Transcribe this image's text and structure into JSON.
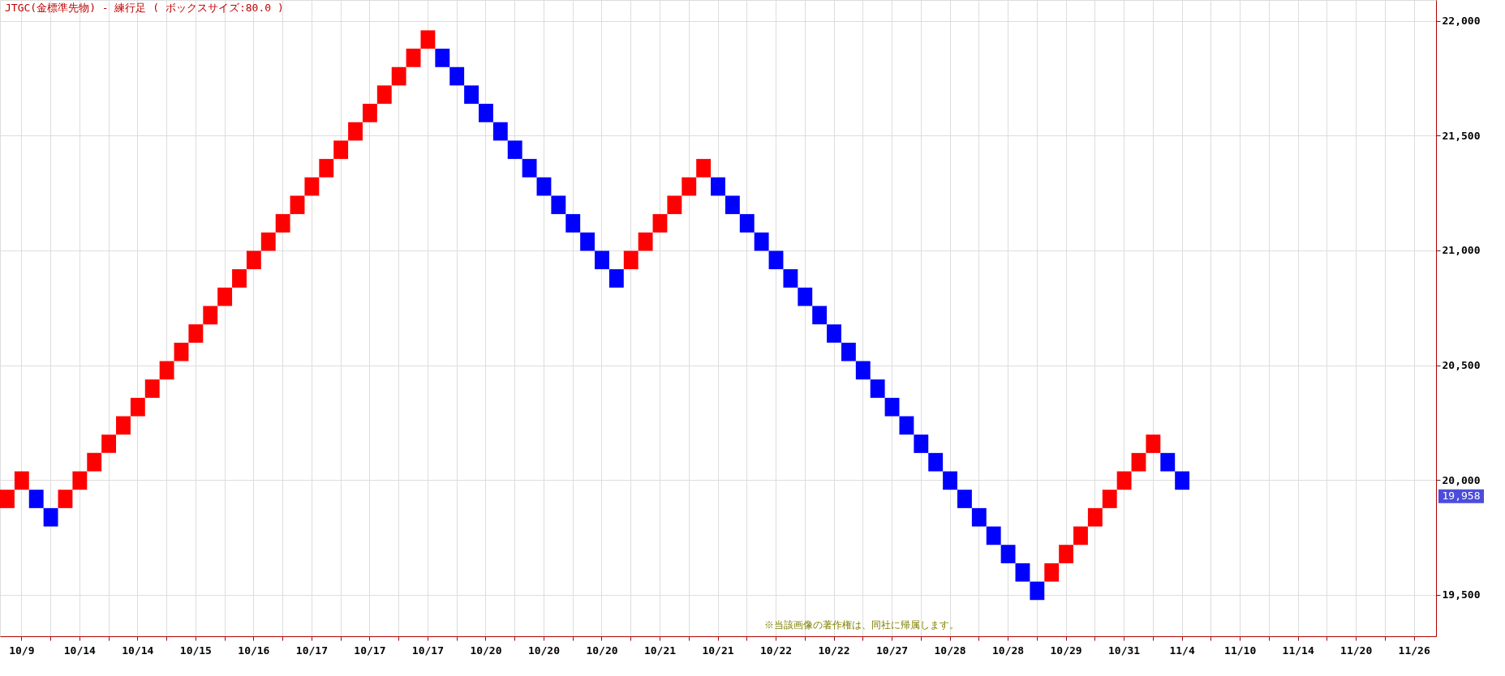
{
  "chart_data": {
    "type": "bar",
    "title": "JTGC(金標準先物) - 練行足 ( ボックスサイズ:80.0 )",
    "categories": [
      null,
      "10/9",
      null,
      null,
      null,
      "10/14",
      null,
      null,
      null,
      "10/14",
      null,
      null,
      null,
      "10/15",
      null,
      null,
      null,
      "10/16",
      null,
      null,
      null,
      "10/17",
      null,
      null,
      null,
      "10/17",
      null,
      null,
      null,
      "10/17",
      null,
      null,
      null,
      "10/20",
      null,
      null,
      null,
      "10/20",
      null,
      null,
      null,
      "10/20",
      null,
      null,
      null,
      "10/21",
      null,
      null,
      null,
      "10/21",
      null,
      null,
      null,
      "10/22",
      null,
      null,
      null,
      "10/22",
      null,
      null,
      null,
      "10/27",
      null,
      null,
      null,
      "10/28",
      null,
      null,
      null,
      "10/28",
      null,
      null,
      null,
      "10/29",
      null,
      null,
      null,
      "10/31",
      null,
      null,
      null,
      "11/4",
      null,
      null,
      null,
      "11/10",
      null,
      null,
      null,
      "11/14",
      null,
      null,
      null,
      "11/20",
      null,
      null,
      null,
      "11/26",
      null
    ],
    "base": [
      19878,
      19958,
      19958,
      19878,
      19878,
      19958,
      20038,
      20118,
      20198,
      20278,
      20358,
      20438,
      20518,
      20598,
      20678,
      20758,
      20838,
      20918,
      20998,
      21078,
      21158,
      21238,
      21318,
      21398,
      21478,
      21558,
      21638,
      21718,
      21798,
      21878,
      21878,
      21798,
      21718,
      21638,
      21558,
      21478,
      21398,
      21318,
      21238,
      21158,
      21078,
      20998,
      20918,
      20918,
      20998,
      21078,
      21158,
      21238,
      21318,
      21318,
      21238,
      21158,
      21078,
      20998,
      20918,
      20838,
      20758,
      20678,
      20598,
      20518,
      20438,
      20358,
      20278,
      20198,
      20118,
      20038,
      19958,
      19878,
      19798,
      19718,
      19638,
      19558,
      19558,
      19638,
      19718,
      19798,
      19878,
      19958,
      20038,
      20118,
      20118,
      20038,
      null,
      null,
      null,
      null,
      null,
      null,
      null,
      null,
      null,
      null,
      null,
      null,
      null,
      null,
      null,
      null,
      null
    ],
    "values": [
      80,
      80,
      -80,
      -80,
      80,
      80,
      80,
      80,
      80,
      80,
      80,
      80,
      80,
      80,
      80,
      80,
      80,
      80,
      80,
      80,
      80,
      80,
      80,
      80,
      80,
      80,
      80,
      80,
      80,
      80,
      -80,
      -80,
      -80,
      -80,
      -80,
      -80,
      -80,
      -80,
      -80,
      -80,
      -80,
      -80,
      -80,
      80,
      80,
      80,
      80,
      80,
      80,
      -80,
      -80,
      -80,
      -80,
      -80,
      -80,
      -80,
      -80,
      -80,
      -80,
      -80,
      -80,
      -80,
      -80,
      -80,
      -80,
      -80,
      -80,
      -80,
      -80,
      -80,
      -80,
      -80,
      80,
      80,
      80,
      80,
      80,
      80,
      80,
      80,
      -80,
      -80,
      null,
      null,
      null,
      null,
      null,
      null,
      null,
      null,
      null,
      null,
      null,
      null,
      null,
      null,
      null,
      null,
      null
    ],
    "colors": [
      "#ff0000",
      "#ff0000",
      "#0000ff",
      "#0000ff",
      "#ff0000",
      "#ff0000",
      "#ff0000",
      "#ff0000",
      "#ff0000",
      "#ff0000",
      "#ff0000",
      "#ff0000",
      "#ff0000",
      "#ff0000",
      "#ff0000",
      "#ff0000",
      "#ff0000",
      "#ff0000",
      "#ff0000",
      "#ff0000",
      "#ff0000",
      "#ff0000",
      "#ff0000",
      "#ff0000",
      "#ff0000",
      "#ff0000",
      "#ff0000",
      "#ff0000",
      "#ff0000",
      "#ff0000",
      "#0000ff",
      "#0000ff",
      "#0000ff",
      "#0000ff",
      "#0000ff",
      "#0000ff",
      "#0000ff",
      "#0000ff",
      "#0000ff",
      "#0000ff",
      "#0000ff",
      "#0000ff",
      "#0000ff",
      "#ff0000",
      "#ff0000",
      "#ff0000",
      "#ff0000",
      "#ff0000",
      "#ff0000",
      "#0000ff",
      "#0000ff",
      "#0000ff",
      "#0000ff",
      "#0000ff",
      "#0000ff",
      "#0000ff",
      "#0000ff",
      "#0000ff",
      "#0000ff",
      "#0000ff",
      "#0000ff",
      "#0000ff",
      "#0000ff",
      "#0000ff",
      "#0000ff",
      "#0000ff",
      "#0000ff",
      "#0000ff",
      "#0000ff",
      "#0000ff",
      "#0000ff",
      "#0000ff",
      "#ff0000",
      "#ff0000",
      "#ff0000",
      "#ff0000",
      "#ff0000",
      "#ff0000",
      "#ff0000",
      "#ff0000",
      "#0000ff",
      "#0000ff",
      null,
      null,
      null,
      null,
      null,
      null,
      null,
      null,
      null,
      null,
      null,
      null,
      null,
      null,
      null,
      null,
      null
    ],
    "ylim": [
      19320,
      22090
    ],
    "yticks": [
      {
        "value": 19500,
        "label": "19,500"
      },
      {
        "value": 20000,
        "label": "20,000"
      },
      {
        "value": 20500,
        "label": "20,500"
      },
      {
        "value": 21000,
        "label": "21,000"
      },
      {
        "value": 21500,
        "label": "21,500"
      },
      {
        "value": 22000,
        "label": "22,000"
      }
    ],
    "grid": true,
    "annotations": [
      "19,958",
      "※当該画像の著作権は、同社に帰属します。"
    ]
  }
}
